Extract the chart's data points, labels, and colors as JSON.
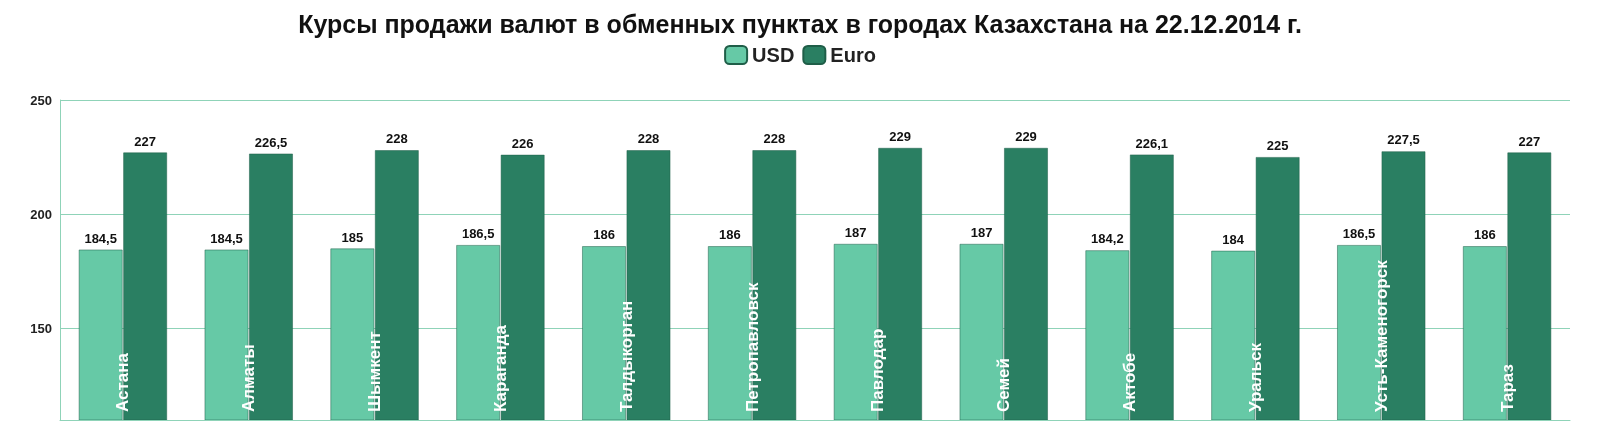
{
  "chart_data": {
    "type": "bar",
    "title": "Курсы продажи валют в обменных пунктах в городах Казахстана на 22.12.2014 г.",
    "categories": [
      "Астана",
      "Алматы",
      "Шымкент",
      "Караганда",
      "Талдыкорган",
      "Петропавловск",
      "Павлодар",
      "Семей",
      "Актобе",
      "Уральск",
      "Усть-Каменогорск",
      "Тараз"
    ],
    "series": [
      {
        "name": "USD",
        "color": "#66c9a6",
        "values": [
          184.5,
          184.5,
          185,
          186.5,
          186,
          186,
          187,
          187,
          184.2,
          184,
          186.5,
          186
        ],
        "value_labels": [
          "184,5",
          "184,5",
          "185",
          "186,5",
          "186",
          "186",
          "187",
          "187",
          "184,2",
          "184",
          "186,5",
          "186"
        ]
      },
      {
        "name": "Euro",
        "color": "#2a7f62",
        "values": [
          227,
          226.5,
          228,
          226,
          228,
          228,
          229,
          229,
          226.1,
          225,
          227.5,
          227
        ],
        "value_labels": [
          "227",
          "226,5",
          "228",
          "226",
          "228",
          "228",
          "229",
          "229",
          "226,1",
          "225",
          "227,5",
          "227"
        ]
      }
    ],
    "ylim": [
      110,
      250
    ],
    "yticks": [
      150,
      200,
      250
    ],
    "grid": "y",
    "legend": "top"
  }
}
